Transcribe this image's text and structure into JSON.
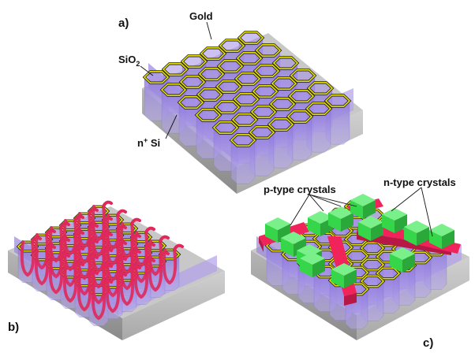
{
  "panels": {
    "a": {
      "label": "a)",
      "annotations": {
        "gold": "Gold",
        "sio2": "SiO",
        "sio2_subscript": "2",
        "nsi": "n",
        "nsi_superscript": "+",
        "nsi_suffix": " Si"
      }
    },
    "b": {
      "label": "b)"
    },
    "c": {
      "label": "c)",
      "annotations": {
        "p_type": "p-type crystals",
        "n_type": "n-type crystals"
      }
    }
  },
  "colors": {
    "gold": "#e8e000",
    "pore_fill": "#9d86e0",
    "substrate_top": "#c9c9c9",
    "substrate_side": "#9e9e9e",
    "ptype": "#36d64a",
    "ntype": "#f0245a",
    "wire": "#e0285c"
  }
}
